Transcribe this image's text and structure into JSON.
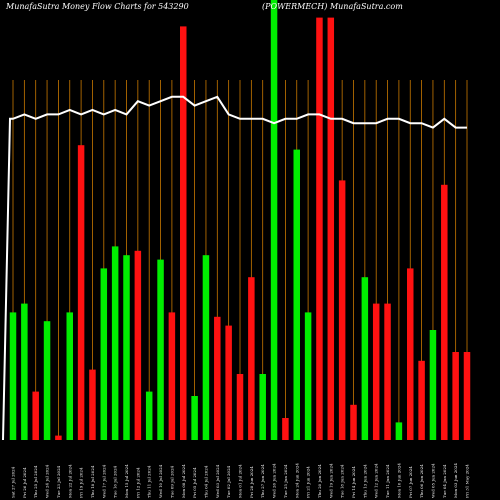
{
  "chart_data": {
    "type": "bar",
    "title": "MunafaSutra  Money Flow  Charts for 543290",
    "subtitle": "(POWERMECH) MunafaSutra.com",
    "ylim": [
      0,
      100
    ],
    "colors": {
      "up": "#00ee00",
      "down": "#ff1111",
      "line": "#ffffff",
      "grid": "#c87800"
    },
    "x": [
      "Sat 27 Jul 2024",
      "Fri 26 Jul 2024",
      "Thu 25 Jul 2024",
      "Wed 24 Jul 2024",
      "Tue 23 Jul 2024",
      "Mon 22 Jul 2024",
      "Fri 19 Jul 2024",
      "Thu 18 Jul 2024",
      "Wed 17 Jul 2024",
      "Tue 16 Jul 2024",
      "Mon 15 Jul 2024",
      "Fri 12 Jul 2024",
      "Thu 11 Jul 2024",
      "Wed 10 Jul 2024",
      "Tue 09 Jul 2024",
      "Mon 08 Jul 2024",
      "Fri 05 Jul 2024",
      "Thu 04 Jul 2024",
      "Wed 03 Jul 2024",
      "Tue 02 Jul 2024",
      "Mon 01 Jul 2024",
      "Fri 28 Jun 2024",
      "Thu 27 Jun 2024",
      "Wed 26 Jun 2024",
      "Tue 25 Jun 2024",
      "Mon 24 Jun 2024",
      "Fri 21 Jun 2024",
      "Thu 20 Jun 2024",
      "Wed 19 Jun 2024",
      "Tue 18 Jun 2024",
      "Fri 14 Jun 2024",
      "Thu 13 Jun 2024",
      "Wed 12 Jun 2024",
      "Tue 11 Jun 2024",
      "Mon 10 Jun 2024",
      "Fri 07 Jun 2024",
      "Thu 06 Jun 2024",
      "Wed 05 Jun 2024",
      "Tue 04 Jun 2024",
      "Mon 03 Jun 2024",
      "Fri 31 May 2024"
    ],
    "series": [
      {
        "values": [
          29,
          31,
          11,
          27,
          1,
          29,
          67,
          16,
          39,
          44,
          42,
          43,
          11,
          41,
          29,
          94,
          10,
          42,
          28,
          26,
          15,
          37,
          15,
          100,
          5,
          66,
          29,
          96,
          96,
          59,
          8,
          37,
          31,
          31,
          4,
          39,
          18,
          25,
          58,
          20,
          20
        ],
        "direction": [
          "up",
          "up",
          "down",
          "up",
          "down",
          "up",
          "down",
          "down",
          "up",
          "up",
          "up",
          "down",
          "up",
          "up",
          "down",
          "down",
          "up",
          "up",
          "down",
          "down",
          "down",
          "down",
          "up",
          "up",
          "down",
          "up",
          "up",
          "down",
          "down",
          "down",
          "down",
          "up",
          "down",
          "down",
          "up",
          "down",
          "down",
          "up",
          "down",
          "down",
          "down"
        ]
      },
      {
        "type": "line",
        "values": [
          73,
          74,
          73,
          74,
          74,
          75,
          74,
          75,
          74,
          75,
          74,
          77,
          76,
          77,
          78,
          78,
          76,
          77,
          78,
          74,
          73,
          73,
          73,
          72,
          73,
          73,
          74,
          74,
          73,
          73,
          72,
          72,
          72,
          73,
          73,
          72,
          72,
          71,
          73,
          71,
          71
        ]
      }
    ],
    "x_labels": [
      "Sat 27 Jul 2024",
      "Fri 26 Jul 2024",
      "Thu 25 Jul 2024",
      "Wed 24 Jul 2024",
      "Tue 23 Jul 2024",
      "Mon 22 Jul 2024",
      "Fri 19 Jul 2024",
      "Thu 18 Jul 2024",
      "Wed 17 Jul 2024",
      "Tue 16 Jul 2024",
      "Mon 15 Jul 2024",
      "Fri 12 Jul 2024",
      "Thu 11 Jul 2024",
      "Wed 10 Jul 2024",
      "Tue 09 Jul 2024",
      "Mon 08 Jul 2024",
      "Fri 05 Jul 2024",
      "Thu 04 Jul 2024",
      "Wed 03 Jul 2024",
      "Tue 02 Jul 2024",
      "Mon 01 Jul 2024",
      "Fri 28 Jun 2024",
      "Thu 27 Jun 2024",
      "Wed 26 Jun 2024",
      "Tue 25 Jun 2024",
      "Mon 24 Jun 2024",
      "Fri 21 Jun 2024",
      "Thu 20 Jun 2024",
      "Wed 19 Jun 2024",
      "Tue 18 Jun 2024",
      "Fri 14 Jun 2024",
      "Thu 13 Jun 2024",
      "Wed 12 Jun 2024",
      "Tue 11 Jun 2024",
      "Mon 10 Jun 2024",
      "Fri 07 Jun 2024",
      "Thu 06 Jun 2024",
      "Wed 05 Jun 2024",
      "Tue 04 Jun 2024",
      "Mon 03 Jun 2024",
      "Fri 31 May 2024"
    ],
    "grid": true,
    "legend": "none"
  }
}
